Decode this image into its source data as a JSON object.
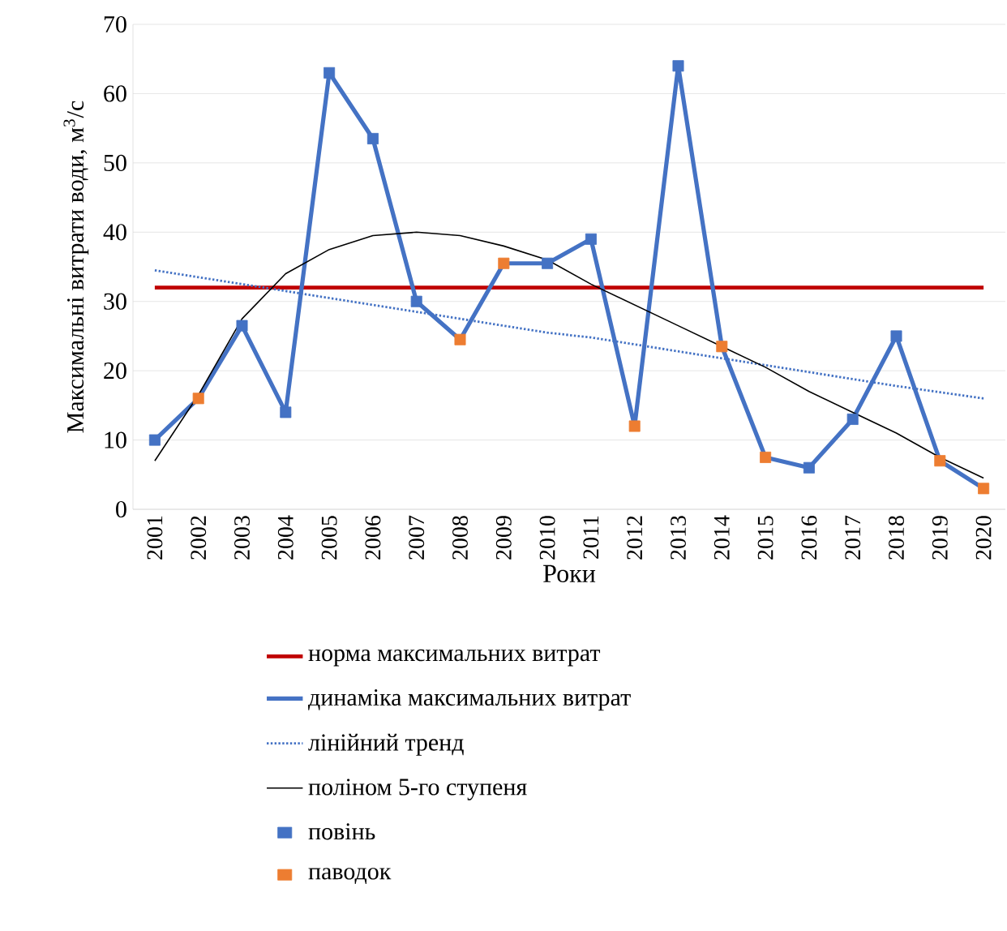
{
  "chart_data": {
    "type": "line",
    "xlabel": "Роки",
    "ylabel": "Максимальні витрати води, м$^{3}$/с",
    "categories": [
      "2001",
      "2002",
      "2003",
      "2004",
      "2005",
      "2006",
      "2007",
      "2008",
      "2009",
      "2010",
      "2011",
      "2012",
      "2013",
      "2014",
      "2015",
      "2016",
      "2017",
      "2018",
      "2019",
      "2020"
    ],
    "series": [
      {
        "name": "норма максимальних витрат",
        "color": "#c00000",
        "line_style": "solid",
        "values": [
          32,
          32,
          32,
          32,
          32,
          32,
          32,
          32,
          32,
          32,
          32,
          32,
          32,
          32,
          32,
          32,
          32,
          32,
          32,
          32
        ]
      },
      {
        "name": "динаміка максимальних витрат",
        "color": "#4472c4",
        "line_style": "solid",
        "values": [
          10,
          16,
          26.5,
          14,
          63,
          53.5,
          30,
          24.5,
          35.5,
          35.5,
          39,
          12,
          64,
          23.5,
          7.5,
          6,
          13,
          25,
          7,
          3
        ]
      },
      {
        "name": "лінійний тренд",
        "color": "#4472c4",
        "line_style": "dotted",
        "values": [
          34.5,
          33.5,
          32.5,
          31.5,
          30.5,
          29.5,
          28.5,
          27.5,
          26.5,
          25.5,
          24.8,
          23.8,
          22.8,
          21.8,
          20.8,
          19.8,
          18.8,
          17.8,
          16.9,
          16
        ]
      },
      {
        "name": "поліном 5-го ступеня",
        "color": "#000000",
        "line_style": "solid",
        "values": [
          7,
          16.5,
          27.5,
          34,
          37.5,
          39.5,
          40,
          39.5,
          38,
          36,
          32.5,
          29.5,
          26.5,
          23.5,
          20.5,
          17,
          14,
          11,
          7.5,
          4.5
        ]
      },
      {
        "name": "повінь",
        "type": "scatter",
        "marker": "square",
        "color": "#4472c4",
        "values": [
          10,
          null,
          26.5,
          14,
          63,
          53.5,
          30,
          null,
          null,
          35.5,
          39,
          null,
          64,
          null,
          null,
          6,
          13,
          25,
          null,
          null
        ]
      },
      {
        "name": "паводок",
        "type": "scatter",
        "marker": "square",
        "color": "#ed7d31",
        "values": [
          null,
          16,
          null,
          null,
          null,
          null,
          null,
          24.5,
          35.5,
          null,
          null,
          12,
          null,
          23.5,
          7.5,
          null,
          null,
          null,
          7,
          3
        ]
      }
    ],
    "ylim": [
      0,
      70
    ],
    "yticks": [
      0,
      10,
      20,
      30,
      40,
      50,
      60,
      70
    ],
    "grid": "y",
    "legend": "bottom"
  }
}
